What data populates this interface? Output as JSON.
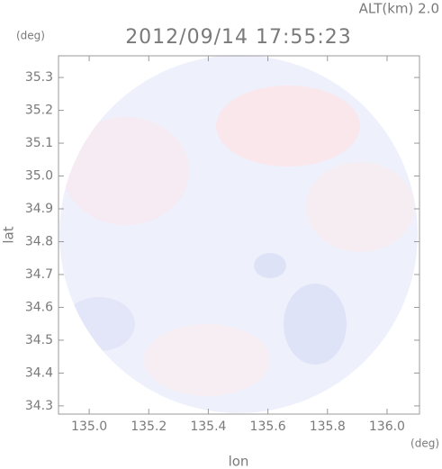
{
  "chart_data": {
    "type": "radar-map",
    "annotation": "ALT(km) 2.0",
    "title": "2012/09/14 17:55:23",
    "y_unit": "(deg)",
    "x_unit": "(deg)",
    "xlabel": "lon",
    "ylabel": "lat",
    "xlim": [
      134.897,
      136.109
    ],
    "ylim": [
      34.275,
      35.366
    ],
    "xticks": [
      {
        "value": 135.0,
        "label": "135.0"
      },
      135.2,
      135.4,
      135.6,
      135.8,
      {
        "value": 136.0,
        "label": "136.0"
      }
    ],
    "yticks": [
      35.3,
      35.2,
      35.1,
      {
        "value": 35.0,
        "label": "35.0"
      },
      34.9,
      34.8,
      34.7,
      34.6,
      34.5,
      34.4,
      34.3
    ],
    "color": "#eef0fb"
  }
}
